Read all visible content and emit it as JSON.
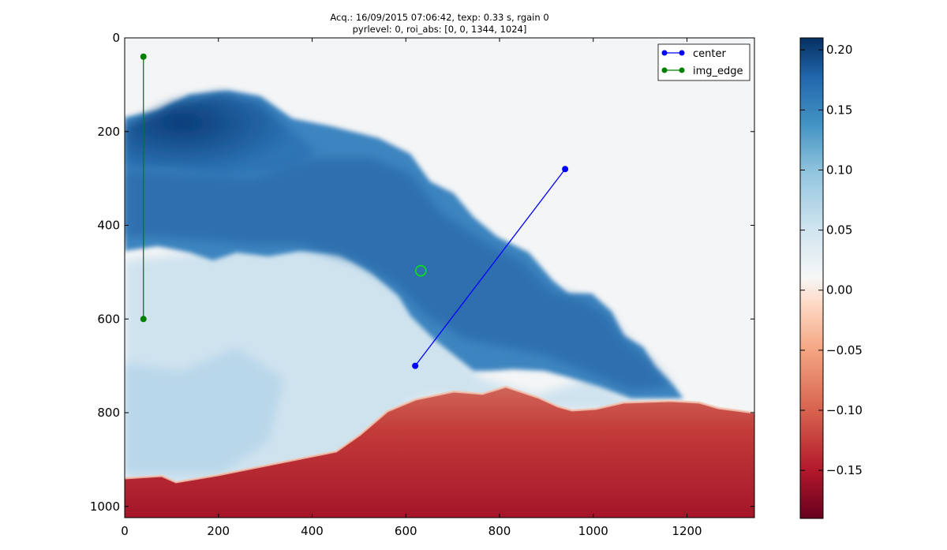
{
  "chart_data": {
    "type": "heatmap",
    "title_lines": [
      "Acq.: 16/09/2015 07:06:42, texp: 0.33 s, rgain 0",
      "pyrlevel: 0, roi_abs: [0, 0, 1344, 1024]"
    ],
    "xlabel": "",
    "ylabel": "",
    "xlim": [
      0,
      1344
    ],
    "ylim": [
      1024,
      0
    ],
    "x_ticks": [
      0,
      200,
      400,
      600,
      800,
      1000,
      1200
    ],
    "y_ticks": [
      0,
      200,
      400,
      600,
      800,
      1000
    ],
    "grid": false,
    "image": {
      "width": 1344,
      "height": 1024,
      "description_fields": {
        "plume_top_boundary": [
          [
            0,
            170
          ],
          [
            100,
            150
          ],
          [
            200,
            110
          ],
          [
            300,
            110
          ],
          [
            400,
            160
          ],
          [
            500,
            190
          ],
          [
            570,
            250
          ],
          [
            650,
            330
          ],
          [
            700,
            390
          ],
          [
            760,
            430
          ],
          [
            850,
            470
          ],
          [
            950,
            540
          ],
          [
            1050,
            600
          ],
          [
            1150,
            700
          ],
          [
            1190,
            770
          ]
        ],
        "plume_bottom_boundary": [
          [
            0,
            480
          ],
          [
            100,
            470
          ],
          [
            200,
            450
          ],
          [
            300,
            400
          ],
          [
            400,
            380
          ],
          [
            450,
            420
          ],
          [
            520,
            520
          ],
          [
            600,
            630
          ],
          [
            700,
            710
          ],
          [
            800,
            740
          ],
          [
            900,
            760
          ],
          [
            1000,
            780
          ],
          [
            1100,
            790
          ],
          [
            1190,
            770
          ]
        ],
        "ground_boundary": [
          [
            0,
            945
          ],
          [
            80,
            940
          ],
          [
            110,
            950
          ],
          [
            200,
            935
          ],
          [
            300,
            915
          ],
          [
            400,
            895
          ],
          [
            450,
            885
          ],
          [
            500,
            850
          ],
          [
            560,
            800
          ],
          [
            620,
            775
          ],
          [
            700,
            758
          ],
          [
            760,
            762
          ],
          [
            810,
            748
          ],
          [
            880,
            770
          ],
          [
            920,
            790
          ],
          [
            950,
            798
          ],
          [
            1000,
            795
          ],
          [
            1060,
            790
          ],
          [
            1100,
            778
          ],
          [
            1200,
            775
          ],
          [
            1260,
            778
          ],
          [
            1300,
            790
          ],
          [
            1344,
            800
          ]
        ]
      },
      "values": {
        "plume_core": 0.2,
        "plume_body": 0.14,
        "plume_light": 0.05,
        "background": 0.0,
        "ground": -0.15
      }
    },
    "colorbar": {
      "colormap": "RdBu",
      "vmin": -0.19,
      "vmax": 0.21,
      "ticks": [
        -0.15,
        -0.1,
        -0.05,
        0.0,
        0.05,
        0.1,
        0.15,
        0.2
      ],
      "tick_labels": [
        "−0.15",
        "−0.10",
        "−0.05",
        "0.00",
        "0.05",
        "0.10",
        "0.15",
        "0.20"
      ]
    },
    "series": [
      {
        "name": "center",
        "color": "#0000ff",
        "marker": "circle",
        "x": [
          620,
          940
        ],
        "y": [
          700,
          280
        ]
      },
      {
        "name": "img_edge",
        "color": "#008000",
        "marker": "circle",
        "x": [
          40,
          40
        ],
        "y": [
          40,
          600
        ]
      }
    ],
    "annotations": [
      {
        "kind": "circle",
        "color": "#00ee00",
        "x": 632,
        "y": 497,
        "marker": "open-circle"
      }
    ],
    "legend": {
      "placement": "top-right",
      "entries": [
        "center",
        "img_edge"
      ]
    }
  }
}
